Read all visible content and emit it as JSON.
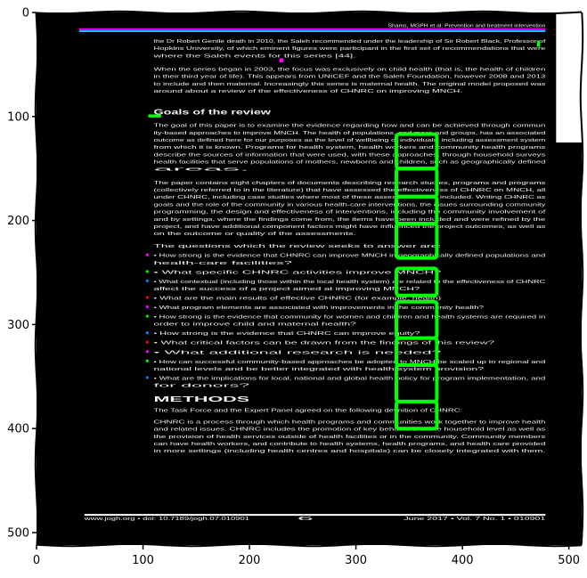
{
  "chart_data": {
    "type": "image",
    "title": "",
    "xlabel": "",
    "ylabel": "",
    "xlim": [
      0,
      512
    ],
    "ylim": [
      512,
      0
    ],
    "x_ticks": [
      0,
      100,
      200,
      300,
      400,
      500
    ],
    "y_ticks": [
      0,
      100,
      200,
      300,
      400,
      500
    ],
    "x_tick_labels": [
      "0",
      "100",
      "200",
      "300",
      "400",
      "500"
    ],
    "y_tick_labels": [
      "0",
      "100",
      "200",
      "300",
      "400",
      "500"
    ],
    "image_background": "#000000",
    "highlight_color": "#00ff00",
    "highlight_boxes": [
      {
        "x0": 338,
        "y0": 117,
        "x1": 376,
        "y1": 150
      },
      {
        "x0": 338,
        "y0": 150,
        "x1": 376,
        "y1": 177
      },
      {
        "x0": 338,
        "y0": 177,
        "x1": 376,
        "y1": 203
      },
      {
        "x0": 338,
        "y0": 203,
        "x1": 376,
        "y1": 236
      },
      {
        "x0": 338,
        "y0": 246,
        "x1": 376,
        "y1": 272
      },
      {
        "x0": 338,
        "y0": 278,
        "x1": 376,
        "y1": 313
      },
      {
        "x0": 338,
        "y0": 313,
        "x1": 376,
        "y1": 339
      },
      {
        "x0": 338,
        "y0": 339,
        "x1": 376,
        "y1": 374
      },
      {
        "x0": 338,
        "y0": 374,
        "x1": 376,
        "y1": 400
      }
    ],
    "white_region": {
      "x0": 488,
      "y0": 0,
      "x1": 512,
      "y1": 125
    },
    "document_lines": [
      {
        "y": 12,
        "x0": 330,
        "x1": 478,
        "text": "Shams, MGPH et al. Prevention and treatment intervention"
      },
      {
        "y": 27,
        "x0": 110,
        "x1": 478,
        "text": "the Dr Robert Gentle death in 2010, the Saleh recommended under the leadership of Sir Robert Black, Professor of"
      },
      {
        "y": 34,
        "x0": 110,
        "x1": 478,
        "text": "Hopkins University, of which eminent figures were participant in the first set of recommendations that were"
      },
      {
        "y": 41,
        "x0": 110,
        "x1": 300,
        "text": "where the Saleh events for this series [44]."
      },
      {
        "y": 54,
        "x0": 110,
        "x1": 478,
        "text": "When the series began in 2003, the focus was exclusively on child health (that is, the health of children"
      },
      {
        "y": 61,
        "x0": 110,
        "x1": 478,
        "text": "in their third year of life). This appears from UNICEF and the Saleh Foundation, however 2008 and 2013"
      },
      {
        "y": 68,
        "x0": 110,
        "x1": 478,
        "text": "to include and then maternal. Increasingly this series is maternal health. The original model proposed was"
      },
      {
        "y": 75,
        "x0": 110,
        "x1": 400,
        "text": "around about a review of the effectiveness of CHNRC on improving MNCH."
      },
      {
        "y": 96,
        "x0": 110,
        "x1": 220,
        "text": "Goals of the review"
      },
      {
        "y": 108,
        "x0": 110,
        "x1": 478,
        "text": "The goal of this paper is to examine the evidence regarding how and can be achieved through commun"
      },
      {
        "y": 115,
        "x0": 110,
        "x1": 478,
        "text": "ity-based approaches to improve MNCH. The health of populations, and more and groups, has an associated"
      },
      {
        "y": 122,
        "x0": 110,
        "x1": 478,
        "text": "outcome as defined here for our purposes as the level of wellbeing of individuals, including assessment system"
      },
      {
        "y": 129,
        "x0": 110,
        "x1": 478,
        "text": "from which it is known. Programs for health system, health workers and community health programs"
      },
      {
        "y": 136,
        "x0": 110,
        "x1": 478,
        "text": "describe the sources of information that were used, with these approaches, through household surveys"
      },
      {
        "y": 143,
        "x0": 110,
        "x1": 478,
        "text": "health facilities that serve populations of mothers, newborns and children, such as geographically defined"
      },
      {
        "y": 150,
        "x0": 110,
        "x1": 200,
        "text": "areas."
      },
      {
        "y": 163,
        "x0": 110,
        "x1": 478,
        "text": "The paper contains eight chapters of documents describing research studies, programs and programs"
      },
      {
        "y": 170,
        "x0": 110,
        "x1": 478,
        "text": "(collectively referred to in the literature) that have assessed the effectiveness of CHNRC on MNCH, all"
      },
      {
        "y": 177,
        "x0": 110,
        "x1": 478,
        "text": "under CHNRC, including case studies where most of these assessments are included. Writing CHNRC as"
      },
      {
        "y": 184,
        "x0": 110,
        "x1": 478,
        "text": "goals and the role of the community in various health-care interventions, the issues surrounding community"
      },
      {
        "y": 191,
        "x0": 110,
        "x1": 478,
        "text": "programming, the design and effectiveness of interventions, including the community involvement of"
      },
      {
        "y": 198,
        "x0": 110,
        "x1": 478,
        "text": "and by settings, where the findings come from, the items have been included and were refined by the"
      },
      {
        "y": 205,
        "x0": 110,
        "x1": 478,
        "text": "project, and have additional component factors might have influenced the project outcomes, as well as"
      },
      {
        "y": 212,
        "x0": 110,
        "x1": 300,
        "text": "on the outcome or quality of the assessments."
      },
      {
        "y": 224,
        "x0": 110,
        "x1": 380,
        "text": "The questions which the review seeks to answer are:"
      },
      {
        "y": 233,
        "x0": 110,
        "x1": 478,
        "text": "• How strong is the evidence that CHNRC can improve MNCH in geographically defined populations and"
      },
      {
        "y": 240,
        "x0": 110,
        "x1": 240,
        "text": "health-care facilities?"
      },
      {
        "y": 249,
        "x0": 110,
        "x1": 380,
        "text": "• What specific CHNRC activities improve MNCH?"
      },
      {
        "y": 258,
        "x0": 110,
        "x1": 478,
        "text": "• What contextual (including those within the local health system) are related to the effectiveness of CHNRC"
      },
      {
        "y": 265,
        "x0": 110,
        "x1": 360,
        "text": "affect the success of a project aimed at improving MNCH?"
      },
      {
        "y": 274,
        "x0": 110,
        "x1": 380,
        "text": "• What are the main results of effective CHNRC (for example, health)"
      },
      {
        "y": 283,
        "x0": 110,
        "x1": 420,
        "text": "• What program elements are associated with improvements in the community health?"
      },
      {
        "y": 292,
        "x0": 110,
        "x1": 478,
        "text": "• How strong is the evidence that community for women and children and health systems are required in"
      },
      {
        "y": 299,
        "x0": 110,
        "x1": 300,
        "text": "order to improve child and maternal health?"
      },
      {
        "y": 308,
        "x0": 110,
        "x1": 360,
        "text": "• How strong is the evidence that CHNRC can improve equity?"
      },
      {
        "y": 317,
        "x0": 110,
        "x1": 430,
        "text": "• What critical factors can be drawn from the findings of this review?"
      },
      {
        "y": 326,
        "x0": 110,
        "x1": 380,
        "text": "• What additional research is needed?"
      },
      {
        "y": 335,
        "x0": 110,
        "x1": 478,
        "text": "• How can successful community-based approaches be adopted to MNCH be scaled up to regional and"
      },
      {
        "y": 342,
        "x0": 110,
        "x1": 420,
        "text": "national levels and be better integrated with health system provision?"
      },
      {
        "y": 351,
        "x0": 110,
        "x1": 478,
        "text": "• What are the implications for local, national and global health policy for program implementation, and"
      },
      {
        "y": 358,
        "x0": 110,
        "x1": 200,
        "text": "for donors?"
      },
      {
        "y": 372,
        "x0": 110,
        "x1": 200,
        "text": "METHODS"
      },
      {
        "y": 382,
        "x0": 110,
        "x1": 400,
        "text": "The Task Force and the Expert Panel agreed on the following definition of CHNRC:"
      },
      {
        "y": 393,
        "x0": 110,
        "x1": 478,
        "text": "CHNRC is a process through which health programs and communities work together to improve health"
      },
      {
        "y": 400,
        "x0": 110,
        "x1": 478,
        "text": "and related issues. CHNRC includes the promotion of key behaviors at the household level as well as"
      },
      {
        "y": 407,
        "x0": 110,
        "x1": 478,
        "text": "the provision of health services outside of health facilities or in the community. Community members"
      },
      {
        "y": 414,
        "x0": 110,
        "x1": 478,
        "text": "can have health workers, and contribute to health systems, health programs, and health care provided"
      },
      {
        "y": 421,
        "x0": 110,
        "x1": 478,
        "text": "in more settings (including health centres and hospitals) can be closely integrated with them."
      },
      {
        "y": 486,
        "x0": 45,
        "x1": 200,
        "text": "www.jogh.org • doi: 10.7189/jogh.07.010901"
      },
      {
        "y": 486,
        "x0": 245,
        "x1": 260,
        "text": "6"
      },
      {
        "y": 486,
        "x0": 345,
        "x1": 478,
        "text": "June 2017 • Vol. 7 No. 1 • 010901"
      }
    ],
    "colored_lines": [
      {
        "y": 16,
        "x0": 40,
        "x1": 478,
        "color": "#ff00ff"
      },
      {
        "y": 18,
        "x0": 40,
        "x1": 478,
        "color": "#00c8ff"
      },
      {
        "y": 483,
        "x0": 45,
        "x1": 478,
        "color": "#ffffff"
      }
    ],
    "small_markers": [
      {
        "x": 105,
        "y": 98,
        "w": 12,
        "h": 3,
        "color": "#00ff00"
      },
      {
        "x": 228,
        "y": 44,
        "w": 4,
        "h": 4,
        "color": "#ff00ff"
      },
      {
        "x": 470,
        "y": 27,
        "w": 3,
        "h": 6,
        "color": "#00ff00"
      }
    ],
    "bullet_points": [
      {
        "y": 233
      },
      {
        "y": 249
      },
      {
        "y": 258
      },
      {
        "y": 274
      },
      {
        "y": 283
      },
      {
        "y": 292
      },
      {
        "y": 308
      },
      {
        "y": 317
      },
      {
        "y": 326
      },
      {
        "y": 335
      },
      {
        "y": 351
      }
    ]
  }
}
